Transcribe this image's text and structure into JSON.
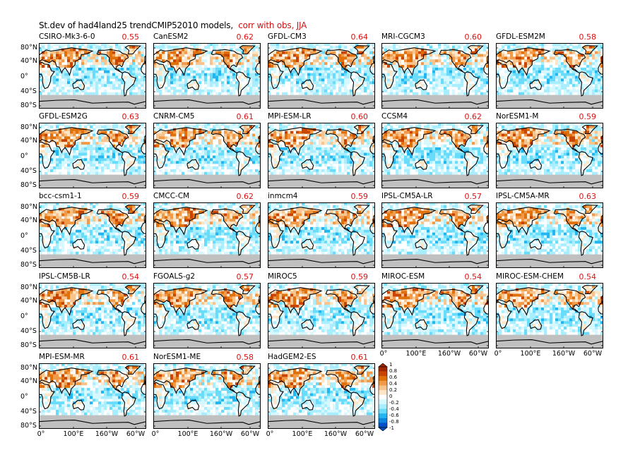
{
  "title": {
    "main": "St.dev of had4land25 trendCMIP52010 models,",
    "highlight": "corr with obs, JJA"
  },
  "chart_data": {
    "type": "heatmap",
    "variable": "St.dev",
    "season": "JJA",
    "panels": [
      {
        "model": "CSIRO-Mk3-6-0",
        "corr": "0.55"
      },
      {
        "model": "CanESM2",
        "corr": "0.62"
      },
      {
        "model": "GFDL-CM3",
        "corr": "0.64"
      },
      {
        "model": "MRI-CGCM3",
        "corr": "0.60"
      },
      {
        "model": "GFDL-ESM2M",
        "corr": "0.58"
      },
      {
        "model": "GFDL-ESM2G",
        "corr": "0.63"
      },
      {
        "model": "CNRM-CM5",
        "corr": "0.61"
      },
      {
        "model": "MPI-ESM-LR",
        "corr": "0.60"
      },
      {
        "model": "CCSM4",
        "corr": "0.62"
      },
      {
        "model": "NorESM1-M",
        "corr": "0.59"
      },
      {
        "model": "bcc-csm1-1",
        "corr": "0.59"
      },
      {
        "model": "CMCC-CM",
        "corr": "0.62"
      },
      {
        "model": "inmcm4",
        "corr": "0.59"
      },
      {
        "model": "IPSL-CM5A-LR",
        "corr": "0.57"
      },
      {
        "model": "IPSL-CM5A-MR",
        "corr": "0.63"
      },
      {
        "model": "IPSL-CM5B-LR",
        "corr": "0.54"
      },
      {
        "model": "FGOALS-g2",
        "corr": "0.57"
      },
      {
        "model": "MIROC5",
        "corr": "0.59"
      },
      {
        "model": "MIROC-ESM",
        "corr": "0.54"
      },
      {
        "model": "MIROC-ESM-CHEM",
        "corr": "0.54"
      },
      {
        "model": "MPI-ESM-MR",
        "corr": "0.61"
      },
      {
        "model": "NorESM1-ME",
        "corr": "0.58"
      },
      {
        "model": "HadGEM2-ES",
        "corr": "0.61"
      }
    ],
    "y_ticks": [
      "80°N",
      "40°N",
      "0°",
      "40°S",
      "80°S"
    ],
    "x_ticks": [
      "0°",
      "100°E",
      "160°W",
      "60°W"
    ],
    "colorbar": {
      "labels": [
        "1",
        "0.8",
        "0.6",
        "0.4",
        "0.2",
        "0",
        "-0.2",
        "-0.4",
        "-0.6",
        "-0.8",
        "-1"
      ],
      "colors": [
        "#a12600",
        "#c94400",
        "#e0700a",
        "#f09a4a",
        "#f8c48e",
        "#fde5c6",
        "#ffffff",
        "#d8f8ff",
        "#a8eeff",
        "#68dcfa",
        "#22b6f0",
        "#0a86e0",
        "#0050c8"
      ]
    },
    "missing_color": "#c0c0c0"
  }
}
